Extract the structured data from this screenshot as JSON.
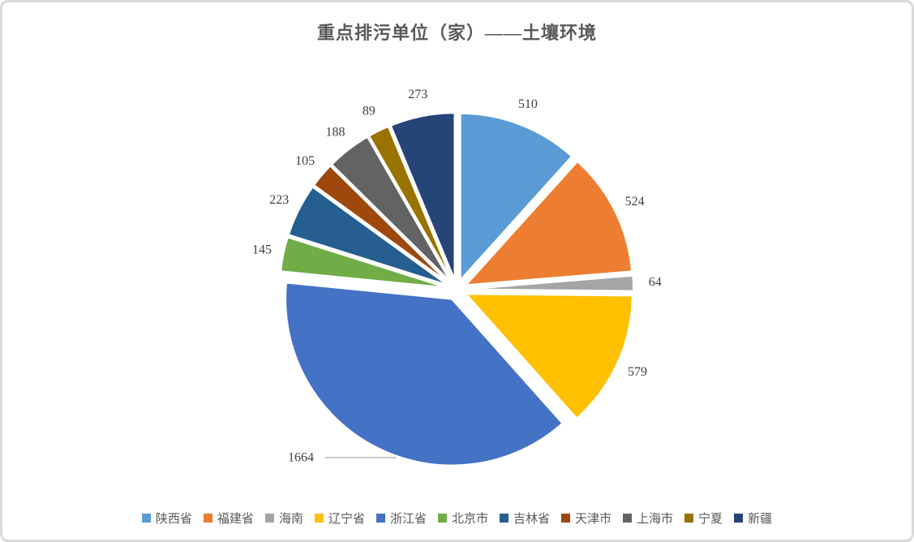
{
  "card": {
    "border_color": "#d9d9d9",
    "background_color": "#ffffff"
  },
  "chart_data": {
    "type": "pie",
    "title": "重点排污单位（家）——土壤环境",
    "categories": [
      "陕西省",
      "福建省",
      "海南",
      "辽宁省",
      "浙江省",
      "北京市",
      "吉林省",
      "天津市",
      "上海市",
      "宁夏",
      "新疆"
    ],
    "values": [
      510,
      524,
      64,
      579,
      1664,
      145,
      223,
      105,
      188,
      89,
      273
    ],
    "colors": [
      "#5B9BD5",
      "#ED7D31",
      "#A5A5A5",
      "#FFC000",
      "#4472C4",
      "#70AD47",
      "#255E91",
      "#9E480E",
      "#636363",
      "#997300",
      "#264478"
    ],
    "data_labels": "value-outside",
    "start_angle_deg": 0,
    "direction": "clockwise",
    "exploded": true,
    "legend_position": "bottom",
    "title_color": "#595959",
    "label_color": "#404040",
    "legend_text_color": "#595959",
    "leader_line_color": "#a6a6a6"
  }
}
